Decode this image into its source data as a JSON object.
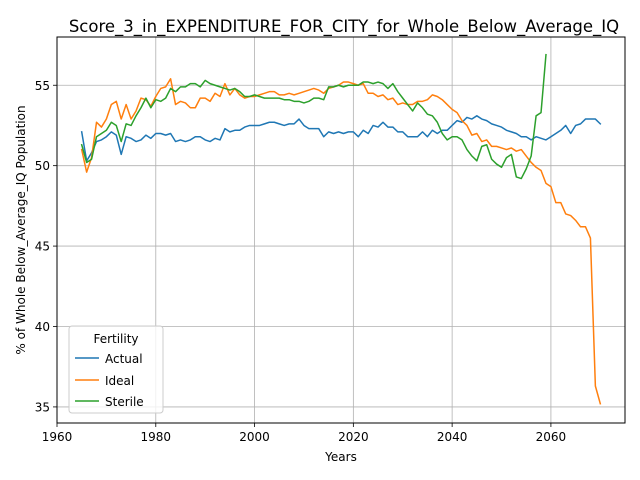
{
  "chart_data": {
    "type": "line",
    "title": "Score_3_in_EXPENDITURE_FOR_CITY_for_Whole_Below_Average_IQ",
    "xlabel": "Years",
    "ylabel": "% of Whole Below_Average_IQ Population",
    "xlim": [
      1960,
      2075
    ],
    "ylim": [
      34,
      58
    ],
    "xticks": [
      1960,
      1980,
      2000,
      2020,
      2040,
      2060
    ],
    "yticks": [
      35,
      40,
      45,
      50,
      55
    ],
    "grid": true,
    "legend": {
      "title": "Fertility",
      "placement": "lower-left"
    },
    "series": [
      {
        "name": "Actual",
        "color": "#1f77b4",
        "x": [
          1965,
          1966,
          1967,
          1968,
          1969,
          1970,
          1971,
          1972,
          1973,
          1974,
          1975,
          1976,
          1977,
          1978,
          1979,
          1980,
          1981,
          1982,
          1983,
          1984,
          1985,
          1986,
          1987,
          1988,
          1989,
          1990,
          1991,
          1992,
          1993,
          1994,
          1995,
          1996,
          1997,
          1998,
          1999,
          2000,
          2001,
          2002,
          2003,
          2004,
          2005,
          2006,
          2007,
          2008,
          2009,
          2010,
          2011,
          2012,
          2013,
          2014,
          2015,
          2016,
          2017,
          2018,
          2019,
          2020,
          2021,
          2022,
          2023,
          2024,
          2025,
          2026,
          2027,
          2028,
          2029,
          2030,
          2031,
          2032,
          2033,
          2034,
          2035,
          2036,
          2037,
          2038,
          2039,
          2040,
          2041,
          2042,
          2043,
          2044,
          2045,
          2046,
          2047,
          2048,
          2049,
          2050,
          2051,
          2052,
          2053,
          2054,
          2055,
          2056,
          2057,
          2058,
          2059,
          2060,
          2061,
          2062,
          2063,
          2064,
          2065,
          2066,
          2067,
          2068,
          2069,
          2070
        ],
        "y": [
          52.1,
          50.3,
          50.8,
          51.5,
          51.6,
          51.8,
          52.1,
          51.9,
          50.7,
          51.8,
          51.7,
          51.5,
          51.6,
          51.9,
          51.7,
          52.0,
          52.0,
          51.9,
          52.0,
          51.5,
          51.6,
          51.5,
          51.6,
          51.8,
          51.8,
          51.6,
          51.5,
          51.7,
          51.6,
          52.3,
          52.1,
          52.2,
          52.2,
          52.4,
          52.5,
          52.5,
          52.5,
          52.6,
          52.7,
          52.7,
          52.6,
          52.5,
          52.6,
          52.6,
          52.9,
          52.5,
          52.3,
          52.3,
          52.3,
          51.8,
          52.1,
          52.0,
          52.1,
          52.0,
          52.1,
          52.1,
          51.8,
          52.2,
          52.0,
          52.5,
          52.4,
          52.7,
          52.4,
          52.4,
          52.1,
          52.1,
          51.8,
          51.8,
          51.8,
          52.1,
          51.8,
          52.2,
          52.0,
          52.2,
          52.2,
          52.5,
          52.8,
          52.7,
          53.0,
          52.9,
          53.1,
          52.9,
          52.8,
          52.6,
          52.5,
          52.4,
          52.2,
          52.1,
          52.0,
          51.8,
          51.8,
          51.6,
          51.8,
          51.7,
          51.6,
          51.8,
          52.0,
          52.2,
          52.5,
          52.0,
          52.5,
          52.6,
          52.9,
          52.9,
          52.9,
          52.6
        ]
      },
      {
        "name": "Ideal",
        "color": "#ff7f0e",
        "x": [
          1965,
          1966,
          1967,
          1968,
          1969,
          1970,
          1971,
          1972,
          1973,
          1974,
          1975,
          1976,
          1977,
          1978,
          1979,
          1980,
          1981,
          1982,
          1983,
          1984,
          1985,
          1986,
          1987,
          1988,
          1989,
          1990,
          1991,
          1992,
          1993,
          1994,
          1995,
          1996,
          1997,
          1998,
          1999,
          2000,
          2001,
          2002,
          2003,
          2004,
          2005,
          2006,
          2007,
          2008,
          2009,
          2010,
          2011,
          2012,
          2013,
          2014,
          2015,
          2016,
          2017,
          2018,
          2019,
          2020,
          2021,
          2022,
          2023,
          2024,
          2025,
          2026,
          2027,
          2028,
          2029,
          2030,
          2031,
          2032,
          2033,
          2034,
          2035,
          2036,
          2037,
          2038,
          2039,
          2040,
          2041,
          2042,
          2043,
          2044,
          2045,
          2046,
          2047,
          2048,
          2049,
          2050,
          2051,
          2052,
          2053,
          2054,
          2055,
          2056,
          2057,
          2058,
          2059,
          2060,
          2061,
          2062,
          2063,
          2064,
          2065,
          2066,
          2067,
          2068,
          2069,
          2070
        ],
        "y": [
          51.0,
          49.6,
          50.5,
          52.7,
          52.4,
          52.9,
          53.8,
          54.0,
          52.9,
          53.8,
          52.9,
          53.4,
          54.2,
          54.1,
          53.7,
          54.3,
          54.8,
          54.9,
          55.4,
          53.8,
          54.0,
          53.9,
          53.6,
          53.6,
          54.2,
          54.2,
          54.0,
          54.5,
          54.3,
          55.1,
          54.4,
          54.8,
          54.4,
          54.2,
          54.3,
          54.3,
          54.4,
          54.5,
          54.6,
          54.6,
          54.4,
          54.4,
          54.5,
          54.4,
          54.5,
          54.6,
          54.7,
          54.8,
          54.7,
          54.5,
          54.8,
          54.9,
          55.0,
          55.2,
          55.2,
          55.1,
          55.0,
          55.1,
          54.5,
          54.5,
          54.3,
          54.4,
          54.1,
          54.2,
          53.8,
          53.9,
          53.8,
          53.8,
          54.0,
          54.0,
          54.1,
          54.4,
          54.3,
          54.1,
          53.8,
          53.5,
          53.3,
          52.8,
          52.5,
          51.9,
          52.0,
          51.5,
          51.6,
          51.2,
          51.2,
          51.1,
          51.0,
          51.1,
          50.9,
          51.0,
          50.6,
          50.2,
          49.9,
          49.7,
          48.9,
          48.7,
          47.7,
          47.7,
          47.0,
          46.9,
          46.6,
          46.2,
          46.2,
          45.5,
          36.3,
          35.2
        ]
      },
      {
        "name": "Sterile",
        "color": "#2ca02c",
        "x": [
          1965,
          1966,
          1967,
          1968,
          1969,
          1970,
          1971,
          1972,
          1973,
          1974,
          1975,
          1976,
          1977,
          1978,
          1979,
          1980,
          1981,
          1982,
          1983,
          1984,
          1985,
          1986,
          1987,
          1988,
          1989,
          1990,
          1991,
          1992,
          1993,
          1994,
          1995,
          1996,
          1997,
          1998,
          1999,
          2000,
          2001,
          2002,
          2003,
          2004,
          2005,
          2006,
          2007,
          2008,
          2009,
          2010,
          2011,
          2012,
          2013,
          2014,
          2015,
          2016,
          2017,
          2018,
          2019,
          2020,
          2021,
          2022,
          2023,
          2024,
          2025,
          2026,
          2027,
          2028,
          2029,
          2030,
          2031,
          2032,
          2033,
          2034,
          2035,
          2036,
          2037,
          2038,
          2039,
          2040,
          2041,
          2042,
          2043,
          2044,
          2045,
          2046,
          2047,
          2048,
          2049,
          2050,
          2051,
          2052,
          2053,
          2054,
          2055,
          2056,
          2057,
          2058,
          2059
        ],
        "y": [
          51.3,
          50.2,
          50.4,
          51.8,
          52.0,
          52.2,
          52.7,
          52.5,
          51.5,
          52.6,
          52.5,
          53.1,
          53.6,
          54.2,
          53.6,
          54.1,
          54.0,
          54.2,
          54.8,
          54.6,
          54.9,
          54.9,
          55.1,
          55.1,
          54.9,
          55.3,
          55.1,
          55.0,
          54.9,
          54.8,
          54.7,
          54.8,
          54.6,
          54.3,
          54.3,
          54.4,
          54.3,
          54.2,
          54.2,
          54.2,
          54.2,
          54.1,
          54.1,
          54.0,
          54.0,
          53.9,
          54.0,
          54.2,
          54.2,
          54.1,
          54.9,
          54.9,
          55.0,
          54.9,
          55.0,
          55.0,
          55.0,
          55.2,
          55.2,
          55.1,
          55.2,
          55.1,
          54.8,
          55.1,
          54.6,
          54.2,
          53.8,
          53.4,
          53.9,
          53.6,
          53.2,
          53.1,
          52.7,
          52.0,
          51.6,
          51.8,
          51.8,
          51.6,
          51.0,
          50.6,
          50.3,
          51.2,
          51.3,
          50.4,
          50.1,
          49.9,
          50.5,
          50.7,
          49.3,
          49.2,
          49.8,
          50.6,
          53.1,
          53.3,
          56.9
        ]
      }
    ]
  }
}
